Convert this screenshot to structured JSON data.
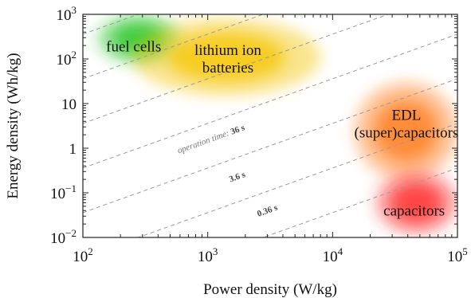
{
  "chart_data": {
    "type": "scatter",
    "xlabel": "Power density (W/kg)",
    "ylabel": "Energy density (Wh/kg)",
    "xscale": "log",
    "yscale": "log",
    "xlim": [
      100,
      100000
    ],
    "ylim": [
      0.01,
      1000
    ],
    "grid": false,
    "x_ticks": [
      {
        "value": 100,
        "base": "10",
        "exp": "2"
      },
      {
        "value": 1000,
        "base": "10",
        "exp": "3"
      },
      {
        "value": 10000,
        "base": "10",
        "exp": "4"
      },
      {
        "value": 100000,
        "base": "10",
        "exp": "5"
      }
    ],
    "y_ticks": [
      {
        "value": 1000,
        "base": "10",
        "exp": "3"
      },
      {
        "value": 100,
        "base": "10",
        "exp": "2"
      },
      {
        "value": 10,
        "base": "10",
        "exp": ""
      },
      {
        "value": 1,
        "base": "1",
        "exp": ""
      },
      {
        "value": 0.1,
        "base": "10",
        "exp": "−1"
      },
      {
        "value": 0.01,
        "base": "10",
        "exp": "−2"
      }
    ],
    "regions": [
      {
        "name": "fuel cells",
        "lines": [
          "fuel cells"
        ],
        "color": "#22c422",
        "x_range": [
          130,
          600
        ],
        "y_range": [
          80,
          1000
        ],
        "label_at": [
          255,
          190
        ]
      },
      {
        "name": "lithium ion batteries",
        "lines": [
          "lithium ion",
          "batteries"
        ],
        "color": "#f5c400",
        "x_range": [
          250,
          8000
        ],
        "y_range": [
          15,
          800
        ],
        "label_at": [
          1450,
          100
        ]
      },
      {
        "name": "EDL (super)capacitors",
        "lines": [
          "EDL",
          "(super)capacitors"
        ],
        "color": "#ff7a1a",
        "x_range": [
          15000,
          100000
        ],
        "y_range": [
          0.2,
          30
        ],
        "label_at": [
          39000,
          3.5
        ]
      },
      {
        "name": "capacitors",
        "lines": [
          "capacitors"
        ],
        "color": "#ff2a2a",
        "x_range": [
          22000,
          100000
        ],
        "y_range": [
          0.012,
          0.3
        ],
        "label_at": [
          45000,
          0.04
        ]
      }
    ],
    "operation_time_lines": [
      {
        "label": "36 s",
        "prefix": "operation time: ",
        "label_at": [
          2000,
          2.6
        ]
      },
      {
        "label": "3.6 s",
        "prefix": "",
        "label_at": [
          1750,
          0.2
        ]
      },
      {
        "label": "0.36 s",
        "prefix": "",
        "label_at": [
          3050,
          0.035
        ]
      }
    ],
    "guide_lines_hours": [
      36,
      3.6,
      0.36,
      0.036,
      0.0036,
      0.00036,
      3.6e-05,
      3.6e-06
    ]
  }
}
